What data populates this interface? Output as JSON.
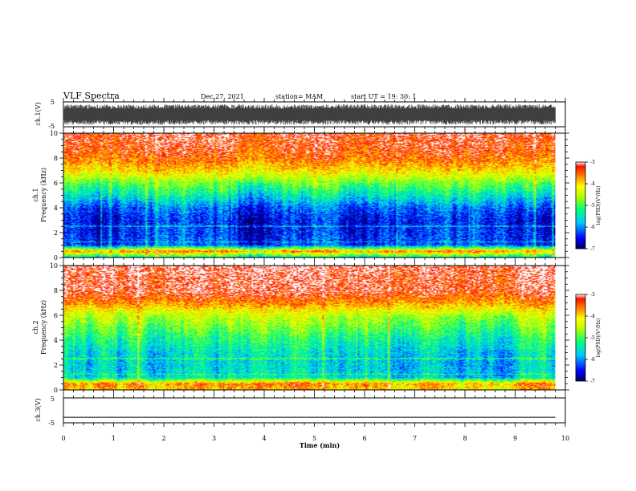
{
  "header": {
    "title": "VLF Spectra",
    "date": "Dec.27, 2021",
    "station": "station= MAM",
    "start": "start  UT  =    19: 30: 1"
  },
  "chart_data": [
    {
      "type": "line",
      "name": "ch1-waveform",
      "ylabel": "ch.1(V)",
      "xlim": [
        0,
        10
      ],
      "ylim": [
        -5,
        5
      ],
      "yticks": [
        "5",
        "-5"
      ],
      "x_end": 9.8,
      "envelope_v": [
        -4.2,
        4.0
      ]
    },
    {
      "type": "heatmap",
      "name": "ch1-spectrogram",
      "ylabel_top": "ch.1",
      "ylabel": "Frequency  (kHz)",
      "xlim": [
        0,
        10
      ],
      "ylim": [
        0,
        10
      ],
      "yticks": [
        "0",
        "2",
        "4",
        "6",
        "8",
        "10"
      ],
      "x_end": 9.8,
      "colorbar": {
        "label": "log(PSD)(V²/Hz)",
        "range": [
          -7,
          -3
        ],
        "ticks": [
          "-3",
          "-4",
          "-5",
          "-6",
          "-7"
        ]
      },
      "profile_freq_khz": [
        0,
        0.5,
        1,
        2,
        3,
        4,
        5,
        6,
        7,
        8,
        9,
        10
      ],
      "profile_log_psd": [
        -5.5,
        -3.6,
        -6.2,
        -6.3,
        -6.4,
        -6.1,
        -5.4,
        -4.8,
        -4.0,
        -3.5,
        -3.3,
        -3.2
      ]
    },
    {
      "type": "heatmap",
      "name": "ch2-spectrogram",
      "ylabel_top": "ch.2",
      "ylabel": "Frequency  (kHz)",
      "xlim": [
        0,
        10
      ],
      "ylim": [
        0,
        10
      ],
      "yticks": [
        "0",
        "2",
        "4",
        "6",
        "8",
        "10"
      ],
      "x_end": 9.8,
      "colorbar": {
        "label": "log(PSD)(V²/Hz)",
        "range": [
          -7,
          -3
        ],
        "ticks": [
          "-3",
          "-4",
          "-5",
          "-6",
          "-7"
        ]
      },
      "profile_freq_khz": [
        0,
        0.5,
        1,
        2,
        3,
        4,
        5,
        6,
        7,
        8,
        9,
        10
      ],
      "profile_log_psd": [
        -4.0,
        -3.7,
        -5.6,
        -5.7,
        -5.6,
        -5.3,
        -4.9,
        -4.5,
        -3.7,
        -3.2,
        -3.2,
        -3.1
      ]
    },
    {
      "type": "line",
      "name": "ch3-waveform",
      "ylabel": "ch.3(V)",
      "xlim": [
        0,
        10
      ],
      "ylim": [
        -5,
        5
      ],
      "yticks": [
        "5",
        "-5"
      ],
      "x_end": 9.8,
      "value_v": -2.8
    }
  ],
  "x_axis": {
    "label": "Time  (min)",
    "ticks": [
      "0",
      "1",
      "2",
      "3",
      "4",
      "5",
      "6",
      "7",
      "8",
      "9",
      "10"
    ]
  }
}
